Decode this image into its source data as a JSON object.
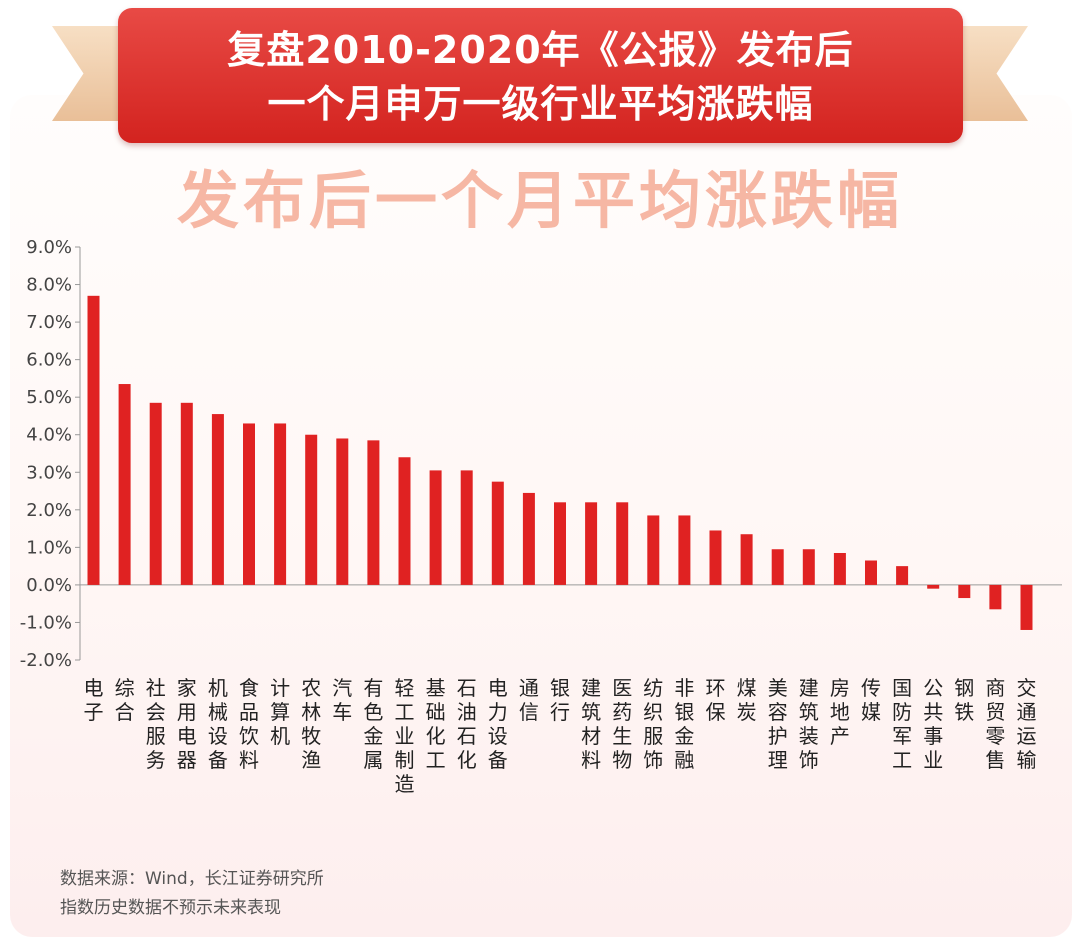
{
  "banner": {
    "line1": "复盘2010-2020年《公报》发布后",
    "line2": "一个月申万一级行业平均涨跌幅"
  },
  "chart_data": {
    "type": "bar",
    "title": "发布后一个月平均涨跌幅",
    "xlabel": "",
    "ylabel": "",
    "ylim": [
      -2.0,
      9.0
    ],
    "yticks": [
      "9.0%",
      "8.0%",
      "7.0%",
      "6.0%",
      "5.0%",
      "4.0%",
      "3.0%",
      "2.0%",
      "1.0%",
      "0.0%",
      "-1.0%",
      "-2.0%"
    ],
    "grid": false,
    "bar_color": "#e02222",
    "categories": [
      "电子",
      "综合",
      "社会服务",
      "家用电器",
      "机械设备",
      "食品饮料",
      "计算机",
      "农林牧渔",
      "汽车",
      "有色金属",
      "轻工业制造",
      "基础化工",
      "石油石化",
      "电力设备",
      "通信",
      "银行",
      "建筑材料",
      "医药生物",
      "纺织服饰",
      "非银金融",
      "环保",
      "煤炭",
      "美容护理",
      "建筑装饰",
      "房地产",
      "传媒",
      "国防军工",
      "公共事业",
      "钢铁",
      "商贸零售",
      "交通运输"
    ],
    "values": [
      7.7,
      5.35,
      4.85,
      4.85,
      4.55,
      4.3,
      4.3,
      4.0,
      3.9,
      3.85,
      3.4,
      3.05,
      3.05,
      2.75,
      2.45,
      2.2,
      2.2,
      2.2,
      1.85,
      1.85,
      1.45,
      1.35,
      0.95,
      0.95,
      0.85,
      0.65,
      0.5,
      -0.1,
      -0.35,
      -0.65,
      -1.2
    ]
  },
  "footnote": {
    "source": "数据来源：Wind，长江证券研究所",
    "disclaimer": "指数历史数据不预示未来表现"
  }
}
